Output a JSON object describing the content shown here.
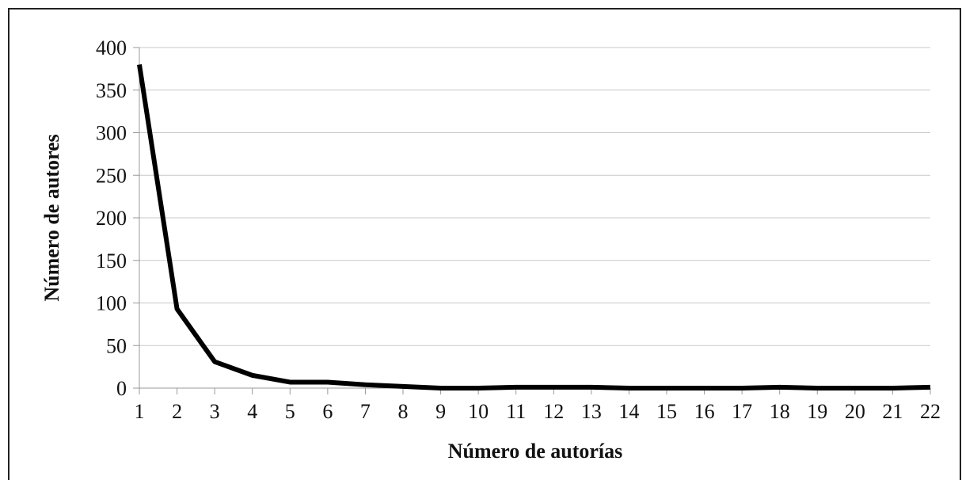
{
  "chart_data": {
    "type": "line",
    "x": [
      1,
      2,
      3,
      4,
      5,
      6,
      7,
      8,
      9,
      10,
      11,
      12,
      13,
      14,
      15,
      16,
      17,
      18,
      19,
      20,
      21,
      22
    ],
    "series": [
      {
        "name": "Número de autores",
        "color": "#000000",
        "values": [
          380,
          93,
          31,
          15,
          7,
          7,
          4,
          2,
          0,
          0,
          1,
          1,
          1,
          0,
          0,
          0,
          0,
          1,
          0,
          0,
          0,
          1
        ]
      }
    ],
    "xlabel": "Número de autorías",
    "ylabel": "Número de autores",
    "xlim": [
      1,
      22
    ],
    "xticks": [
      1,
      2,
      3,
      4,
      5,
      6,
      7,
      8,
      9,
      10,
      11,
      12,
      13,
      14,
      15,
      16,
      17,
      18,
      19,
      20,
      21,
      22
    ],
    "ylim": [
      0,
      400
    ],
    "yticks": [
      0,
      50,
      100,
      150,
      200,
      250,
      300,
      350,
      400
    ],
    "grid": true
  }
}
